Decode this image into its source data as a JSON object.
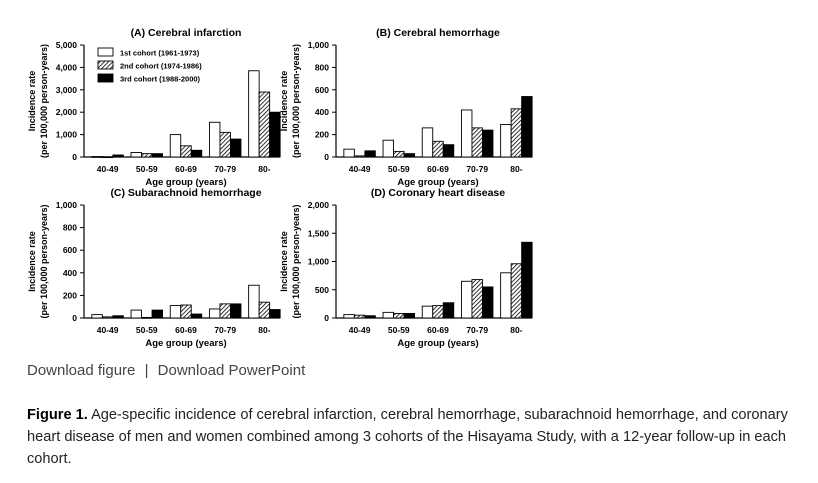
{
  "figure_links": {
    "download_figure": "Download figure",
    "separator": "|",
    "download_powerpoint": "Download PowerPoint"
  },
  "caption": {
    "label": "Figure 1.",
    "text": "Age-specific incidence of cerebral infarction, cerebral hemorrhage, subarachnoid hemorrhage, and coronary heart disease of men and women combined among 3 cohorts of the Hisayama Study, with a 12-year follow-up in each cohort."
  },
  "legend": [
    {
      "label": "1st cohort  (1961-1973)",
      "fill": "white"
    },
    {
      "label": "2nd cohort  (1974-1986)",
      "fill": "hatch"
    },
    {
      "label": "3rd cohort  (1988-2000)",
      "fill": "black"
    }
  ],
  "chart_data": [
    {
      "type": "bar",
      "title": "(A) Cerebral infarction",
      "xlabel": "Age group (years)",
      "ylabel": [
        "Incidence rate",
        "(per 100,000 person-years)"
      ],
      "categories": [
        "40-49",
        "50-59",
        "60-69",
        "70-79",
        "80-"
      ],
      "ylim": [
        0,
        5000
      ],
      "yticks": [
        "0",
        "1,000",
        "2,000",
        "3,000",
        "4,000",
        "5,000"
      ],
      "series": [
        {
          "name": "1st cohort (1961-1973)",
          "values": [
            20,
            200,
            1000,
            1550,
            3850
          ]
        },
        {
          "name": "2nd cohort (1974-1986)",
          "values": [
            10,
            150,
            500,
            1100,
            2900
          ]
        },
        {
          "name": "3rd cohort (1988-2000)",
          "values": [
            90,
            150,
            300,
            800,
            2000
          ]
        }
      ]
    },
    {
      "type": "bar",
      "title": "(B) Cerebral hemorrhage",
      "xlabel": "Age group (years)",
      "ylabel": [
        "Incidence rate",
        "(per 100,000 person-years)"
      ],
      "categories": [
        "40-49",
        "50-59",
        "60-69",
        "70-79",
        "80-"
      ],
      "ylim": [
        0,
        1000
      ],
      "yticks": [
        "0",
        "200",
        "400",
        "600",
        "800",
        "1,000"
      ],
      "series": [
        {
          "name": "1st cohort (1961-1973)",
          "values": [
            70,
            150,
            260,
            420,
            290
          ]
        },
        {
          "name": "2nd cohort (1974-1986)",
          "values": [
            10,
            50,
            140,
            260,
            430
          ]
        },
        {
          "name": "3rd cohort (1988-2000)",
          "values": [
            55,
            30,
            110,
            240,
            540
          ]
        }
      ]
    },
    {
      "type": "bar",
      "title": "(C) Subarachnoid hemorrhage",
      "xlabel": "Age group (years)",
      "ylabel": [
        "Incidence rate",
        "(per 100,000 person-years)"
      ],
      "categories": [
        "40-49",
        "50-59",
        "60-69",
        "70-79",
        "80-"
      ],
      "ylim": [
        0,
        1000
      ],
      "yticks": [
        "0",
        "200",
        "400",
        "600",
        "800",
        "1,000"
      ],
      "series": [
        {
          "name": "1st cohort (1961-1973)",
          "values": [
            30,
            70,
            110,
            80,
            290
          ]
        },
        {
          "name": "2nd cohort (1974-1986)",
          "values": [
            10,
            5,
            115,
            125,
            140
          ]
        },
        {
          "name": "3rd cohort (1988-2000)",
          "values": [
            20,
            70,
            35,
            125,
            75
          ]
        }
      ]
    },
    {
      "type": "bar",
      "title": "(D) Coronary heart disease",
      "xlabel": "Age group (years)",
      "ylabel": [
        "Incidence rate",
        "(per 100,000 person-years)"
      ],
      "categories": [
        "40-49",
        "50-59",
        "60-69",
        "70-79",
        "80-"
      ],
      "ylim": [
        0,
        2000
      ],
      "yticks": [
        "0",
        "500",
        "1,000",
        "1,500",
        "2,000"
      ],
      "series": [
        {
          "name": "1st cohort (1961-1973)",
          "values": [
            60,
            100,
            210,
            650,
            800
          ]
        },
        {
          "name": "2nd cohort (1974-1986)",
          "values": [
            50,
            80,
            220,
            680,
            960
          ]
        },
        {
          "name": "3rd cohort (1988-2000)",
          "values": [
            40,
            80,
            270,
            550,
            1340
          ]
        }
      ]
    }
  ]
}
